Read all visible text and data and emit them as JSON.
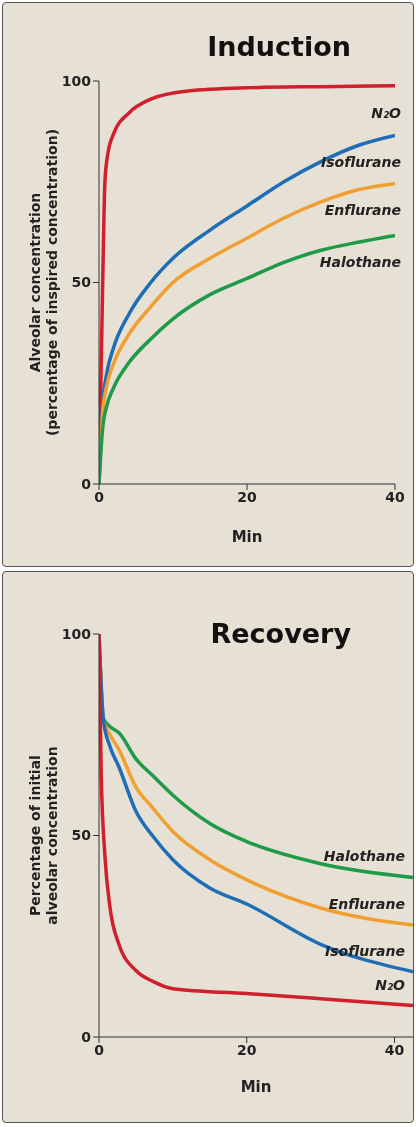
{
  "chart_data": [
    {
      "type": "line",
      "title": "Induction",
      "xlabel": "Min",
      "ylabel": "Alveolar concentration\n(percentage of inspired concentration)",
      "xlim": [
        0,
        40
      ],
      "xticks": [
        0,
        20,
        40
      ],
      "ylim": [
        0,
        100
      ],
      "yticks": [
        0,
        50,
        100
      ],
      "series": [
        {
          "name": "N₂O",
          "color": "#d0202e",
          "x": [
            0,
            0.5,
            0.8,
            1.2,
            2,
            4,
            7,
            12,
            20,
            30,
            40
          ],
          "values": [
            0,
            50,
            75,
            82,
            87,
            92,
            95.5,
            97.5,
            98.3,
            98.6,
            98.8
          ]
        },
        {
          "name": "Isoflurane",
          "color": "#1f6db5",
          "x": [
            0,
            0.5,
            1,
            2,
            4,
            7,
            10,
            15,
            20,
            25,
            30,
            35,
            40
          ],
          "values": [
            0,
            20,
            27,
            34,
            42,
            50,
            56,
            63,
            69,
            75,
            80,
            84,
            86.5
          ]
        },
        {
          "name": "Enflurane",
          "color": "#f0a030",
          "x": [
            0,
            0.5,
            1,
            2,
            4,
            7,
            10,
            15,
            20,
            25,
            30,
            35,
            40
          ],
          "values": [
            0,
            18,
            24,
            30,
            37,
            44,
            50,
            56,
            61,
            66,
            70,
            73,
            74.6
          ]
        },
        {
          "name": "Halothane",
          "color": "#1e9a48",
          "x": [
            0,
            0.5,
            1,
            2,
            4,
            7,
            10,
            15,
            20,
            25,
            30,
            35,
            40
          ],
          "values": [
            0,
            14,
            19,
            24,
            30,
            36,
            41,
            47,
            51,
            55,
            58,
            60,
            61.7
          ]
        }
      ]
    },
    {
      "type": "line",
      "title": "Recovery",
      "xlabel": "Min",
      "ylabel": "Percentage of initial\nalveolar concentration",
      "xlim": [
        0,
        42.5
      ],
      "xticks": [
        0,
        20,
        40
      ],
      "ylim": [
        0,
        100
      ],
      "yticks": [
        0,
        50,
        100
      ],
      "series": [
        {
          "name": "Halothane",
          "color": "#1e9a48",
          "x": [
            0,
            0.6,
            1.5,
            2.7,
            5,
            7.3,
            10,
            15,
            20,
            30,
            42.5
          ],
          "values": [
            100,
            79,
            77,
            75.5,
            69,
            64.8,
            60,
            53,
            48.5,
            43,
            39.6
          ]
        },
        {
          "name": "Enflurane",
          "color": "#f0a030",
          "x": [
            0,
            0.6,
            1.5,
            2.7,
            5,
            7.3,
            10,
            15,
            20,
            30,
            42.5
          ],
          "values": [
            100,
            78.6,
            75,
            71.3,
            62,
            56.8,
            51,
            44,
            39,
            32,
            27.8
          ]
        },
        {
          "name": "Isoflurane",
          "color": "#1f6db5",
          "x": [
            0,
            0.6,
            1.5,
            2.7,
            5,
            7.3,
            10,
            15,
            20,
            30,
            42.5
          ],
          "values": [
            100,
            78.6,
            72,
            67,
            56,
            49.8,
            44,
            37,
            33,
            23,
            16.2
          ]
        },
        {
          "name": "N₂O",
          "color": "#d0202e",
          "x": [
            0,
            0.3,
            0.8,
            1.5,
            2.7,
            5,
            7.3,
            10,
            20,
            30,
            42.5
          ],
          "values": [
            100,
            65,
            45,
            32,
            23,
            16.5,
            13.8,
            12,
            10.8,
            9.5,
            7.8
          ]
        }
      ]
    }
  ]
}
